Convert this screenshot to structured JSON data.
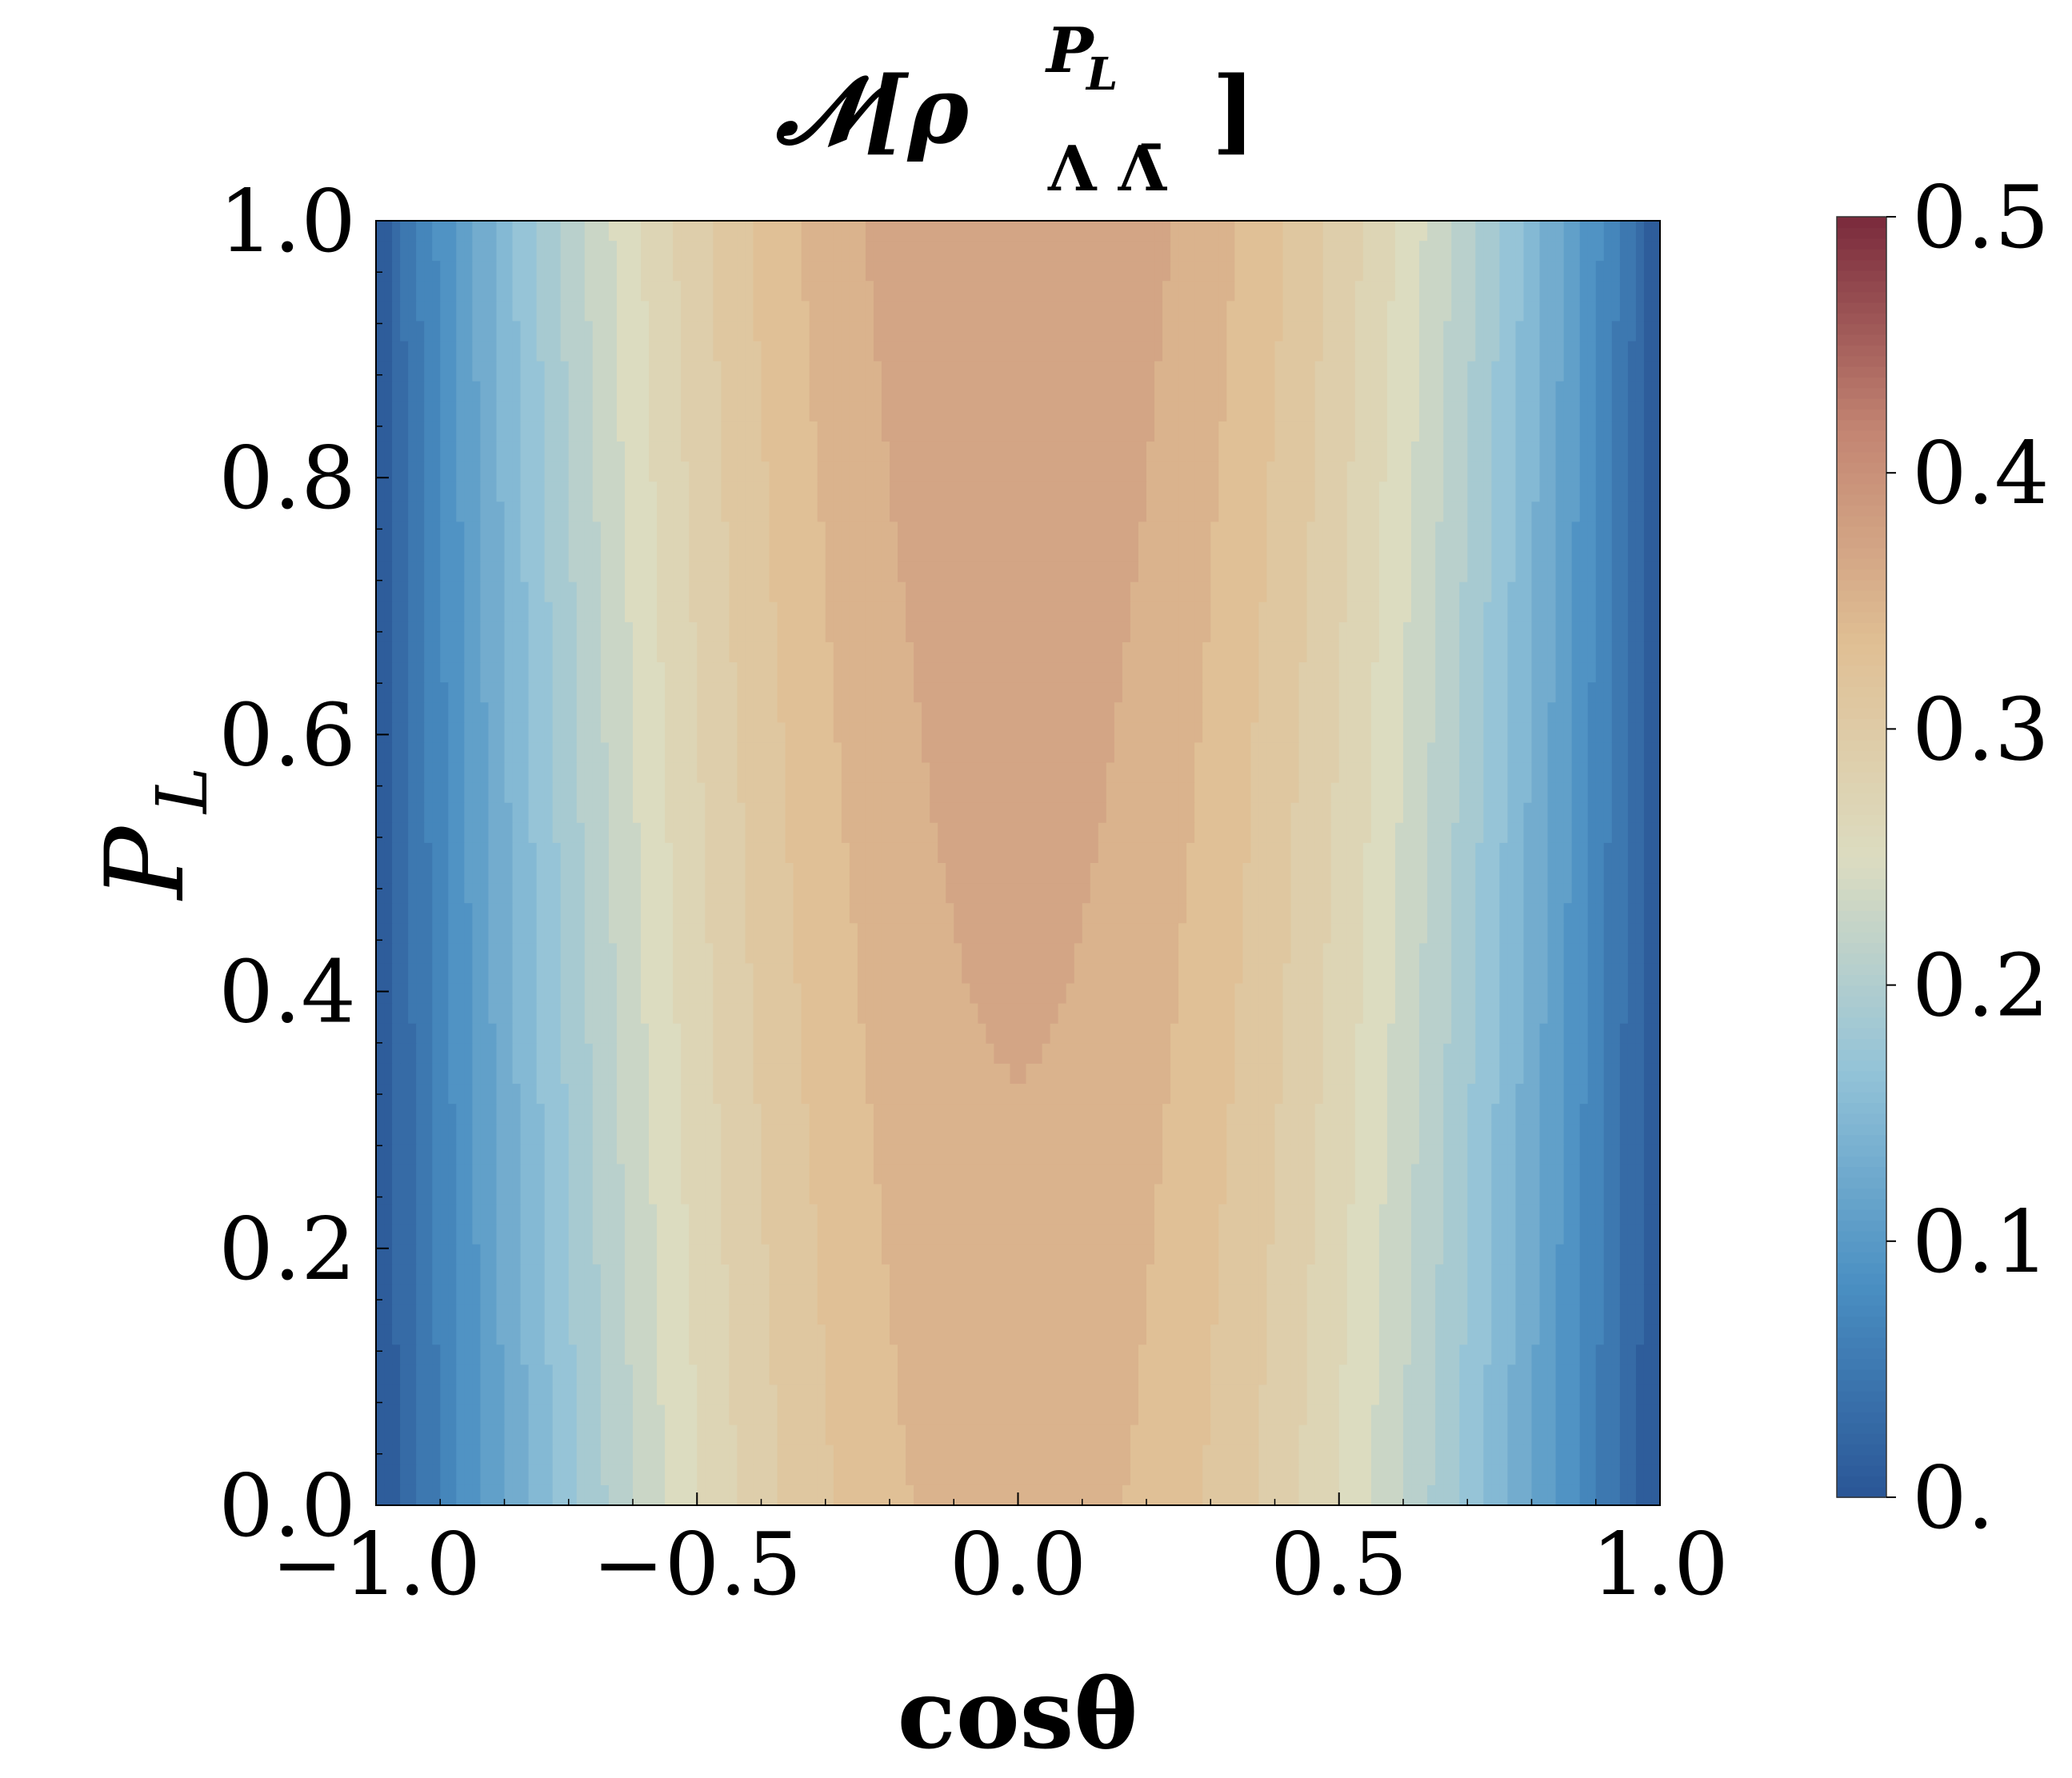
{
  "chart_data": {
    "type": "heatmap",
    "title": "𝓝[ρ",
    "title_superscript": "P",
    "title_superscript_sub": "L",
    "title_subscript": "Λ Λ̄",
    "title_close": "]",
    "xlabel": "cosθ",
    "ylabel": "P",
    "ylabel_sub": "L",
    "xlim": [
      -1.0,
      1.0
    ],
    "ylim": [
      0.0,
      1.0
    ],
    "x_ticks": [
      -1.0,
      -0.5,
      0.0,
      0.5,
      1.0
    ],
    "x_tick_labels": [
      "−1.0",
      "−0.5",
      "0.0",
      "0.5",
      "1.0"
    ],
    "y_ticks": [
      0.0,
      0.2,
      0.4,
      0.6,
      0.8,
      1.0
    ],
    "y_tick_labels": [
      "0.0",
      "0.2",
      "0.4",
      "0.6",
      "0.8",
      "1.0"
    ],
    "colorbar": {
      "range": [
        0.0,
        0.5
      ],
      "ticks": [
        0.0,
        0.1,
        0.2,
        0.3,
        0.4,
        0.5
      ],
      "tick_labels": [
        "0.",
        "0.1",
        "0.2",
        "0.3",
        "0.4",
        "0.5"
      ],
      "colormap": "RdYlBu_r (muted)",
      "colors": [
        "#2a5696",
        "#4a8fc2",
        "#93c3d8",
        "#dcdcc0",
        "#e0bf94",
        "#c38572",
        "#7a2a3c"
      ]
    },
    "levels": 25,
    "z_description_values": {
      "z_at_cos0_PL1": 0.38,
      "z_at_cos0_PL0": 0.35,
      "z_at_cos_pm1": 0.0,
      "peak_region_min_PL": 0.42
    }
  }
}
